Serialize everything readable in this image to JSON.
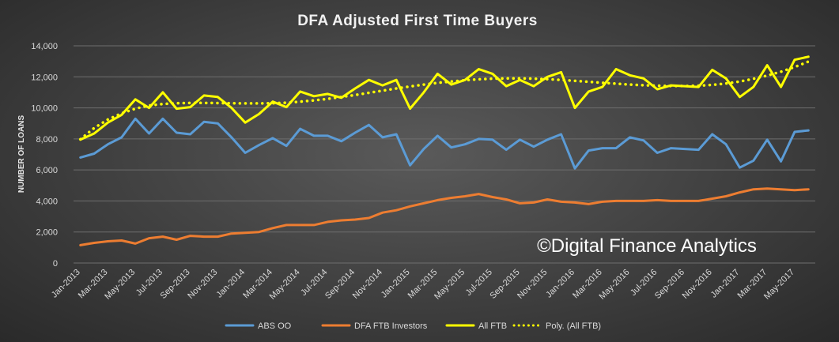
{
  "chart_data": {
    "type": "line",
    "title": "DFA Adjusted First Time Buyers",
    "ylabel": "NUMBER OF LOANS",
    "xlabel": "",
    "ylim": [
      0,
      14000
    ],
    "yticks": [
      "0",
      "2,000",
      "4,000",
      "6,000",
      "8,000",
      "10,000",
      "12,000",
      "14,000"
    ],
    "yticks_values": [
      0,
      2000,
      4000,
      6000,
      8000,
      10000,
      12000,
      14000
    ],
    "grid": true,
    "legend_position": "bottom",
    "watermark": "©Digital Finance Analytics",
    "categories": [
      "Jan-2013",
      "Feb-2013",
      "Mar-2013",
      "Apr-2013",
      "May-2013",
      "Jun-2013",
      "Jul-2013",
      "Aug-2013",
      "Sep-2013",
      "Oct-2013",
      "Nov-2013",
      "Dec-2013",
      "Jan-2014",
      "Feb-2014",
      "Mar-2014",
      "Apr-2014",
      "May-2014",
      "Jun-2014",
      "Jul-2014",
      "Aug-2014",
      "Sep-2014",
      "Oct-2014",
      "Nov-2014",
      "Dec-2014",
      "Jan-2015",
      "Feb-2015",
      "Mar-2015",
      "Apr-2015",
      "May-2015",
      "Jun-2015",
      "Jul-2015",
      "Aug-2015",
      "Sep-2015",
      "Oct-2015",
      "Nov-2015",
      "Dec-2015",
      "Jan-2016",
      "Feb-2016",
      "Mar-2016",
      "Apr-2016",
      "May-2016",
      "Jun-2016",
      "Jul-2016",
      "Aug-2016",
      "Sep-2016",
      "Oct-2016",
      "Nov-2016",
      "Dec-2016",
      "Jan-2017",
      "Feb-2017",
      "Mar-2017",
      "Apr-2017",
      "May-2017",
      "Jun-2017"
    ],
    "xtick_labels": [
      "Jan-2013",
      "Mar-2013",
      "May-2013",
      "Jul-2013",
      "Sep-2013",
      "Nov-2013",
      "Jan-2014",
      "Mar-2014",
      "May-2014",
      "Jul-2014",
      "Sep-2014",
      "Nov-2014",
      "Jan-2015",
      "Mar-2015",
      "May-2015",
      "Jul-2015",
      "Sep-2015",
      "Nov-2015",
      "Jan-2016",
      "Mar-2016",
      "May-2016",
      "Jul-2016",
      "Sep-2016",
      "Nov-2016",
      "Jan-2017",
      "Mar-2017",
      "May-2017"
    ],
    "series": [
      {
        "name": "ABS OO",
        "color": "#5b9bd5",
        "style": "solid",
        "values": [
          6800,
          7050,
          7650,
          8100,
          9300,
          8350,
          9300,
          8400,
          8300,
          9100,
          9000,
          8100,
          7100,
          7600,
          8050,
          7550,
          8650,
          8200,
          8200,
          7850,
          8400,
          8900,
          8100,
          8300,
          6300,
          7350,
          8200,
          7450,
          7650,
          8000,
          7950,
          7300,
          7950,
          7500,
          7950,
          8300,
          6100,
          7250,
          7400,
          7400,
          8100,
          7900,
          7100,
          7400,
          7350,
          7300,
          8300,
          7650,
          6150,
          6600,
          7950,
          6550,
          8450,
          8550
        ]
      },
      {
        "name": "DFA FTB Investors",
        "color": "#ed7d31",
        "style": "solid",
        "values": [
          1150,
          1300,
          1400,
          1450,
          1250,
          1600,
          1700,
          1500,
          1750,
          1700,
          1700,
          1900,
          1950,
          2000,
          2250,
          2450,
          2450,
          2450,
          2650,
          2750,
          2800,
          2900,
          3250,
          3400,
          3650,
          3850,
          4050,
          4200,
          4300,
          4450,
          4250,
          4100,
          3850,
          3900,
          4100,
          3950,
          3900,
          3800,
          3950,
          4000,
          4000,
          4000,
          4050,
          4000,
          4000,
          4000,
          4150,
          4300,
          4550,
          4750,
          4800,
          4750,
          4700,
          4750
        ]
      },
      {
        "name": "All FTB",
        "color": "#ffff00",
        "style": "solid",
        "values": [
          7950,
          8350,
          9050,
          9550,
          10550,
          10000,
          11000,
          9950,
          10050,
          10800,
          10700,
          10000,
          9050,
          9600,
          10400,
          10050,
          11050,
          10750,
          10900,
          10650,
          11250,
          11800,
          11450,
          11800,
          9950,
          11000,
          12200,
          11500,
          11800,
          12500,
          12200,
          11400,
          11800,
          11400,
          12000,
          12300,
          10000,
          11050,
          11350,
          12500,
          12100,
          11900,
          11200,
          11450,
          11400,
          11350,
          12450,
          11900,
          10700,
          11350,
          12750,
          11350,
          13100,
          13300
        ]
      },
      {
        "name": "Poly. (All FTB)",
        "color": "#ffff00",
        "style": "dotted",
        "values": [
          7980,
          8700,
          9250,
          9650,
          9950,
          10150,
          10250,
          10300,
          10320,
          10320,
          10310,
          10300,
          10290,
          10290,
          10300,
          10330,
          10400,
          10480,
          10580,
          10700,
          10830,
          10970,
          11110,
          11250,
          11380,
          11500,
          11610,
          11700,
          11780,
          11840,
          11880,
          11900,
          11900,
          11880,
          11850,
          11800,
          11740,
          11680,
          11620,
          11560,
          11500,
          11460,
          11430,
          11410,
          11410,
          11430,
          11480,
          11570,
          11700,
          11870,
          12080,
          12330,
          12630,
          12980
        ]
      }
    ]
  }
}
